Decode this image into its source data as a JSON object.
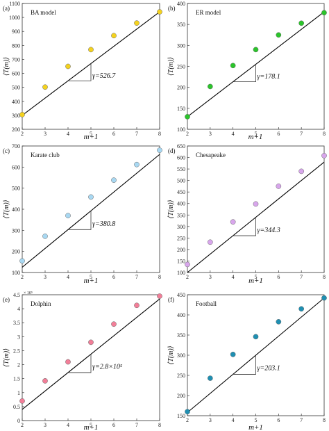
{
  "figure": {
    "ylabel": "⟨T(m)⟩",
    "xlabel": "m+1"
  },
  "chart_data": [
    {
      "type": "scatter",
      "panel": "(a)",
      "name": "BA model",
      "x": [
        2,
        3,
        4,
        5,
        6,
        7,
        8
      ],
      "y": [
        305,
        502,
        650,
        770,
        870,
        960,
        1040
      ],
      "xlim": [
        2,
        8
      ],
      "ylim": [
        200,
        1100
      ],
      "yticks": [
        200,
        300,
        400,
        500,
        600,
        700,
        800,
        900,
        1000,
        1100
      ],
      "color": "#f4d21f",
      "gamma_label": "γ=526.7",
      "fit": {
        "x0": 2,
        "y0": 300,
        "x1": 8,
        "y1": 1040
      },
      "ylabel": "⟨T(m)⟩",
      "xlabel": ""
    },
    {
      "type": "scatter",
      "panel": "(b)",
      "name": "ER model",
      "x": [
        2,
        3,
        4,
        5,
        6,
        7,
        8
      ],
      "y": [
        130,
        202,
        252,
        290,
        325,
        353,
        378
      ],
      "xlim": [
        2,
        8
      ],
      "ylim": [
        100,
        400
      ],
      "yticks": [
        100,
        150,
        200,
        250,
        300,
        350,
        400
      ],
      "color": "#2bc42b",
      "gamma_label": "γ=178.1",
      "fit": {
        "x0": 2,
        "y0": 130,
        "x1": 8,
        "y1": 380
      },
      "ylabel": "⟨T(m)⟩",
      "xlabel": ""
    },
    {
      "type": "scatter",
      "panel": "(c)",
      "name": "Karate club",
      "x": [
        2,
        3,
        4,
        5,
        6,
        7,
        8
      ],
      "y": [
        155,
        272,
        370,
        458,
        538,
        612,
        680
      ],
      "xlim": [
        2,
        8
      ],
      "ylim": [
        100,
        700
      ],
      "yticks": [
        100,
        200,
        300,
        400,
        500,
        600,
        700
      ],
      "color": "#a8d8f2",
      "gamma_label": "γ=380.8",
      "fit": {
        "x0": 2,
        "y0": 125,
        "x1": 8,
        "y1": 660
      },
      "ylabel": "⟨T(m)⟩",
      "xlabel": "m+1"
    },
    {
      "type": "scatter",
      "panel": "(d)",
      "name": "Chesapeake",
      "x": [
        2,
        3,
        4,
        5,
        6,
        7,
        8
      ],
      "y": [
        135,
        232,
        320,
        398,
        475,
        540,
        608
      ],
      "xlim": [
        2,
        8
      ],
      "ylim": [
        100,
        650
      ],
      "yticks": [
        100,
        150,
        200,
        250,
        300,
        350,
        400,
        450,
        500,
        550,
        600,
        650
      ],
      "color": "#d8a6ec",
      "gamma_label": "γ=344.3",
      "fit": {
        "x0": 2,
        "y0": 100,
        "x1": 8,
        "y1": 580
      },
      "ylabel": "⟨T(m)⟩",
      "xlabel": "m+1"
    },
    {
      "type": "scatter",
      "panel": "(e)",
      "name": "Dolphin",
      "x": [
        2,
        3,
        4,
        5,
        6,
        7,
        8
      ],
      "y": [
        0.7,
        1.42,
        2.1,
        2.8,
        3.45,
        4.12,
        4.45
      ],
      "xlim": [
        2,
        8
      ],
      "ylim": [
        0,
        4.5
      ],
      "yticks": [
        0,
        0.5,
        1,
        1.5,
        2,
        2.5,
        3,
        3.5,
        4,
        4.5
      ],
      "y_multiplier": "× 10⁵",
      "color": "#f27e98",
      "gamma_label": "γ=2.8×10⁵",
      "fit": {
        "x0": 2,
        "y0": 0.4,
        "x1": 8,
        "y1": 4.35
      },
      "ylabel": "⟨T(m)⟩",
      "xlabel": "m+1"
    },
    {
      "type": "scatter",
      "panel": "(f)",
      "name": "Football",
      "x": [
        2,
        3,
        4,
        5,
        6,
        7,
        8
      ],
      "y": [
        160,
        243,
        302,
        346,
        383,
        415,
        442
      ],
      "xlim": [
        2,
        8
      ],
      "ylim": [
        150,
        450
      ],
      "yticks": [
        150,
        200,
        250,
        300,
        350,
        400,
        450
      ],
      "color": "#1f8fb2",
      "gamma_label": "γ=203.1",
      "fit": {
        "x0": 2,
        "y0": 158,
        "x1": 8,
        "y1": 442
      },
      "ylabel": "⟨T(m)⟩",
      "xlabel": "m+1"
    }
  ]
}
